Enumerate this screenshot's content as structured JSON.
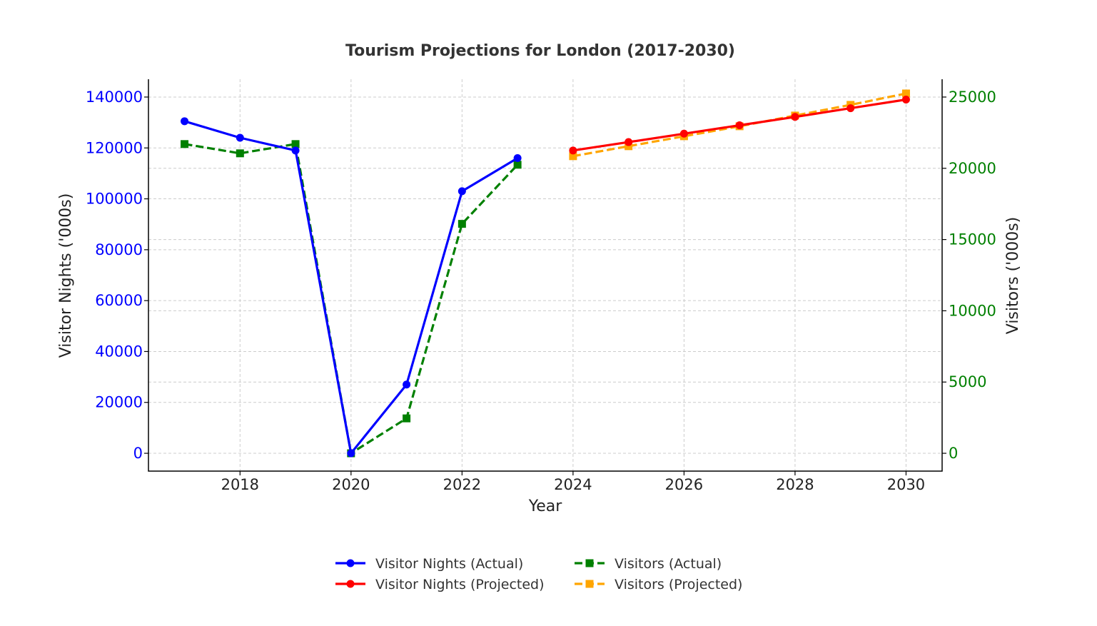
{
  "chart_data": {
    "type": "line",
    "title": "Tourism Projections for London (2017-2030)",
    "xlabel": "Year",
    "ylabel_left": "Visitor Nights ('000s)",
    "ylabel_right": "Visitors ('000s)",
    "xlim": [
      2016.35,
      2030.65
    ],
    "x_ticks": [
      2018,
      2020,
      2022,
      2024,
      2026,
      2028,
      2030
    ],
    "ylim_left": [
      -7000,
      147000
    ],
    "ylim_right": [
      -1250,
      26250
    ],
    "y_ticks_left": [
      0,
      20000,
      40000,
      60000,
      80000,
      100000,
      120000,
      140000
    ],
    "y_ticks_right": [
      0,
      5000,
      10000,
      15000,
      20000,
      25000
    ],
    "grid": true,
    "legend_position": "bottom-center",
    "colors": {
      "left_axis": "#0000ff",
      "right_axis": "#008000"
    },
    "series": [
      {
        "name": "Visitor Nights (Actual)",
        "axis": "left",
        "color": "#0000ff",
        "line_style": "solid",
        "marker": "circle",
        "x": [
          2017,
          2018,
          2019,
          2020,
          2021,
          2022,
          2023
        ],
        "values": [
          130500,
          124000,
          119000,
          0,
          27000,
          103000,
          116000
        ]
      },
      {
        "name": "Visitor Nights (Projected)",
        "axis": "left",
        "color": "#ff0000",
        "line_style": "solid",
        "marker": "circle",
        "x": [
          2024,
          2025,
          2026,
          2027,
          2028,
          2029,
          2030
        ],
        "values": [
          119000,
          122300,
          125600,
          128900,
          132200,
          135600,
          139000
        ]
      },
      {
        "name": "Visitors (Actual)",
        "axis": "right",
        "color": "#008000",
        "line_style": "dashed",
        "marker": "square",
        "x": [
          2017,
          2018,
          2019,
          2020,
          2021,
          2022,
          2023
        ],
        "values": [
          21700,
          21050,
          21700,
          0,
          2450,
          16100,
          20250
        ]
      },
      {
        "name": "Visitors (Projected)",
        "axis": "right",
        "color": "#ffa500",
        "line_style": "dashed",
        "marker": "square",
        "x": [
          2024,
          2025,
          2026,
          2027,
          2028,
          2029,
          2030
        ],
        "values": [
          20850,
          21550,
          22250,
          22950,
          23700,
          24450,
          25250
        ]
      }
    ]
  }
}
